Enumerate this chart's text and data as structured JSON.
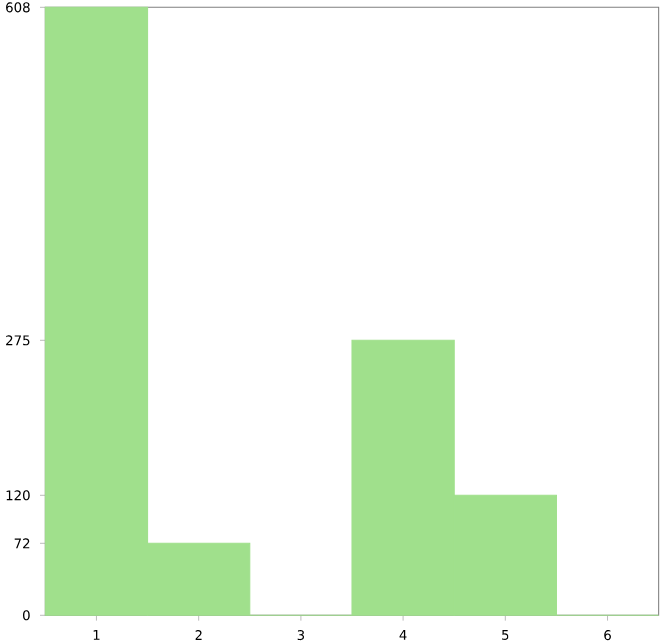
{
  "chart_data": {
    "type": "bar",
    "categories": [
      "1",
      "2",
      "3",
      "4",
      "5",
      "6"
    ],
    "values": [
      608,
      72,
      0,
      275,
      120,
      0
    ],
    "color": "#a0e08c",
    "ylim": [
      0,
      608
    ],
    "yticks": [
      0,
      72,
      120,
      275,
      608
    ],
    "grid": false
  }
}
